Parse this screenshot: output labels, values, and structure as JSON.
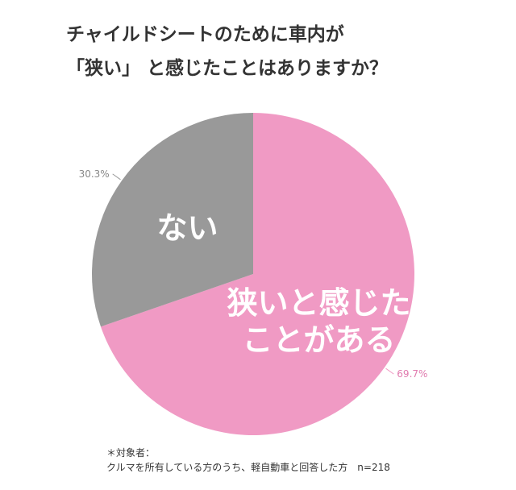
{
  "chart_data": {
    "type": "pie",
    "title": [
      "チャイルドシートのために車内が",
      "「狭い」 と感じたことはありますか？"
    ],
    "categories": [
      [
        "狭いと感じた",
        "ことがある"
      ],
      [
        "ない"
      ]
    ],
    "values": [
      69.7,
      30.3
    ],
    "value_labels": [
      "69.7%",
      "30.3%"
    ],
    "colors": [
      "#f09ac4",
      "#999999"
    ],
    "note": [
      "＊対象者：",
      "クルマを所有している方のうち、軽自動車と回答した方　n=218"
    ]
  }
}
